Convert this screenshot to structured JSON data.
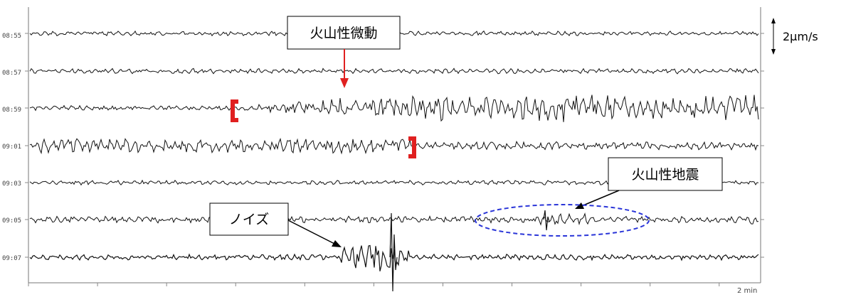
{
  "chart_data": {
    "type": "line",
    "title": "",
    "xlabel": "",
    "ylabel": "",
    "time_labels": [
      "08:55",
      "08:57",
      "08:59",
      "09:01",
      "09:03",
      "09:05",
      "09:07"
    ],
    "x_scale_label": "2 min",
    "amplitude_scale_label": "2μm/s",
    "annotations": {
      "tremor": "火山性微動",
      "earthquake": "火山性地震",
      "noise": "ノイズ"
    },
    "colors": {
      "trace": "#111111",
      "tremor_arrow": "#e02020",
      "tremor_bracket": "#e02020",
      "earthquake_ellipse": "#2a35d8",
      "noise_arrow": "#000000"
    },
    "grid": false,
    "legend": "none"
  }
}
